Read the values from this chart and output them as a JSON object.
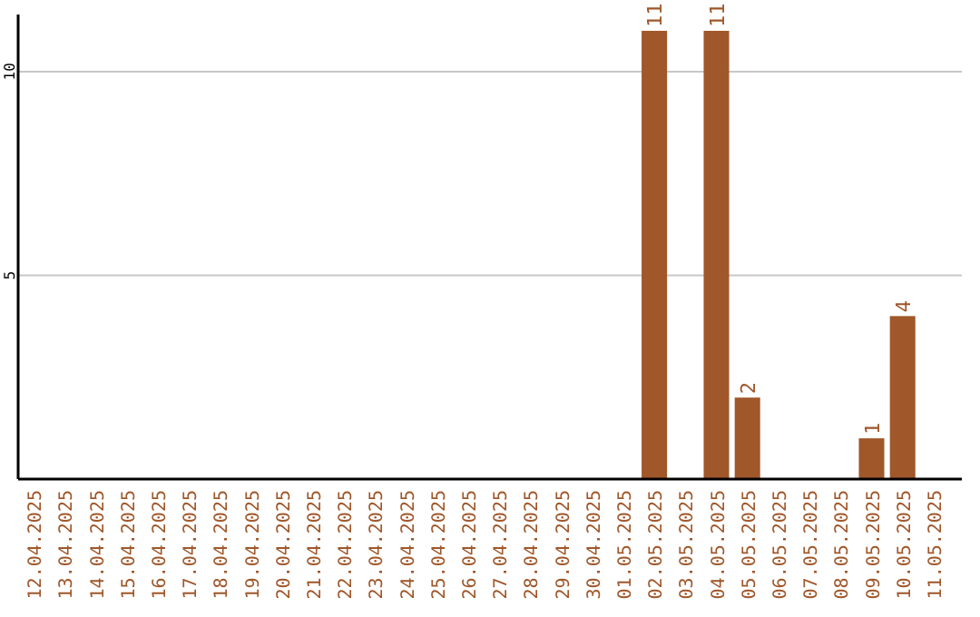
{
  "chart_data": {
    "type": "bar",
    "categories": [
      "12.04.2025",
      "13.04.2025",
      "14.04.2025",
      "15.04.2025",
      "16.04.2025",
      "17.04.2025",
      "18.04.2025",
      "19.04.2025",
      "20.04.2025",
      "21.04.2025",
      "22.04.2025",
      "23.04.2025",
      "24.04.2025",
      "25.04.2025",
      "26.04.2025",
      "27.04.2025",
      "28.04.2025",
      "29.04.2025",
      "30.04.2025",
      "01.05.2025",
      "02.05.2025",
      "03.05.2025",
      "04.05.2025",
      "05.05.2025",
      "06.05.2025",
      "07.05.2025",
      "08.05.2025",
      "09.05.2025",
      "10.05.2025",
      "11.05.2025"
    ],
    "values": [
      0,
      0,
      0,
      0,
      0,
      0,
      0,
      0,
      0,
      0,
      0,
      0,
      0,
      0,
      0,
      0,
      0,
      0,
      0,
      0,
      11,
      0,
      11,
      2,
      0,
      0,
      0,
      1,
      4,
      0
    ],
    "value_labels": [
      null,
      null,
      null,
      null,
      null,
      null,
      null,
      null,
      null,
      null,
      null,
      null,
      null,
      null,
      null,
      null,
      null,
      null,
      null,
      null,
      "11",
      null,
      "11",
      "2",
      null,
      null,
      null,
      "1",
      "4",
      null
    ],
    "color": "#a0572a",
    "ylim": [
      0,
      11.4
    ],
    "yticks": [
      5,
      10
    ],
    "grid": "y"
  }
}
